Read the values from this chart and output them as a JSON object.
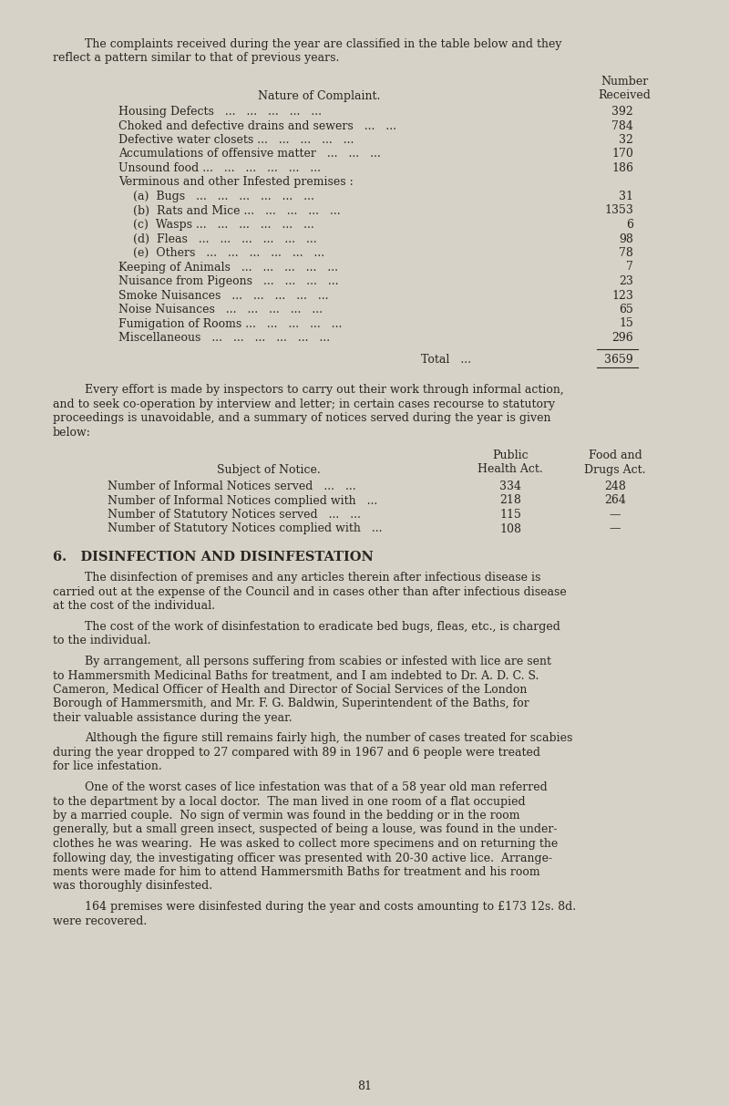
{
  "bg_color": "#d6d2c8",
  "text_color": "#2a2520",
  "page_number": "81",
  "font_family": "serif",
  "intro_paragraph_line1": "The complaints received during the year are classified in the table below and they",
  "intro_paragraph_line2": "reflect a pattern similar to that of previous years.",
  "table1_header_left": "Nature of Complaint.",
  "table1_header_right_line1": "Number",
  "table1_header_right_line2": "Received",
  "table1_rows": [
    [
      "Housing Defects   ...   ...   ...   ...   ...",
      "392"
    ],
    [
      "Choked and defective drains and sewers   ...   ...",
      "784"
    ],
    [
      "Defective water closets ...   ...   ...   ...   ...",
      "32"
    ],
    [
      "Accumulations of offensive matter   ...   ...   ...",
      "170"
    ],
    [
      "Unsound food ...   ...   ...   ...   ...   ...",
      "186"
    ],
    [
      "Verminous and other Infested premises :",
      ""
    ],
    [
      "    (a)  Bugs   ...   ...   ...   ...   ...   ...",
      "31"
    ],
    [
      "    (b)  Rats and Mice ...   ...   ...   ...   ...",
      "1353"
    ],
    [
      "    (c)  Wasps ...   ...   ...   ...   ...   ...",
      "6"
    ],
    [
      "    (d)  Fleas   ...   ...   ...   ...   ...   ...",
      "98"
    ],
    [
      "    (e)  Others   ...   ...   ...   ...   ...   ...",
      "78"
    ],
    [
      "Keeping of Animals   ...   ...   ...   ...   ...",
      "7"
    ],
    [
      "Nuisance from Pigeons   ...   ...   ...   ...",
      "23"
    ],
    [
      "Smoke Nuisances   ...   ...   ...   ...   ...",
      "123"
    ],
    [
      "Noise Nuisances   ...   ...   ...   ...   ...",
      "65"
    ],
    [
      "Fumigation of Rooms ...   ...   ...   ...   ...",
      "15"
    ],
    [
      "Miscellaneous   ...   ...   ...   ...   ...   ...",
      "296"
    ]
  ],
  "table1_total_label": "Total   ...",
  "table1_total_value": "3659",
  "para2_lines": [
    "Every effort is made by inspectors to carry out their work through informal action,",
    "and to seek co-operation by interview and letter; in certain cases recourse to statutory",
    "proceedings is unavoidable, and a summary of notices served during the year is given",
    "below:"
  ],
  "table2_col_header1": "Public",
  "table2_col_header2": "Food and",
  "table2_subject_label": "Subject of Notice.",
  "table2_col_sub1": "Health Act.",
  "table2_col_sub2": "Drugs Act.",
  "table2_rows": [
    [
      "Number of Informal Notices served   ...   ...",
      "334",
      "248"
    ],
    [
      "Number of Informal Notices complied with   ...",
      "218",
      "264"
    ],
    [
      "Number of Statutory Notices served   ...   ...",
      "115",
      "—"
    ],
    [
      "Number of Statutory Notices complied with   ...",
      "108",
      "—"
    ]
  ],
  "section6_heading": "6.   DISINFECTION AND DISINFESTATION",
  "section6_paras": [
    [
      "The disinfection of premises and any articles therein after infectious disease is",
      "carried out at the expense of the Council and in cases other than after infectious disease",
      "at the cost of the individual."
    ],
    [
      "The cost of the work of disinfestation to eradicate bed bugs, fleas, etc., is charged",
      "to the individual."
    ],
    [
      "By arrangement, all persons suffering from scabies or infested with lice are sent",
      "to Hammersmith Medicinal Baths for treatment, and I am indebted to Dr. A. D. C. S.",
      "Cameron, Medical Officer of Health and Director of Social Services of the London",
      "Borough of Hammersmith, and Mr. F. G. Baldwin, Superintendent of the Baths, for",
      "their valuable assistance during the year."
    ],
    [
      "Although the figure still remains fairly high, the number of cases treated for scabies",
      "during the year dropped to 27 compared with 89 in 1967 and 6 people were treated",
      "for lice infestation."
    ],
    [
      "One of the worst cases of lice infestation was that of a 58 year old man referred",
      "to the department by a local doctor.  The man lived in one room of a flat occupied",
      "by a married couple.  No sign of vermin was found in the bedding or in the room",
      "generally, but a small green insect, suspected of being a louse, was found in the under-",
      "clothes he was wearing.  He was asked to collect more specimens and on returning the",
      "following day, the investigating officer was presented with 20-30 active lice.  Arrange-",
      "ments were made for him to attend Hammersmith Baths for treatment and his room",
      "was thoroughly disinfested."
    ],
    [
      "164 premises were disinfested during the year and costs amounting to £173 12s. 8d.",
      "were recovered."
    ]
  ]
}
